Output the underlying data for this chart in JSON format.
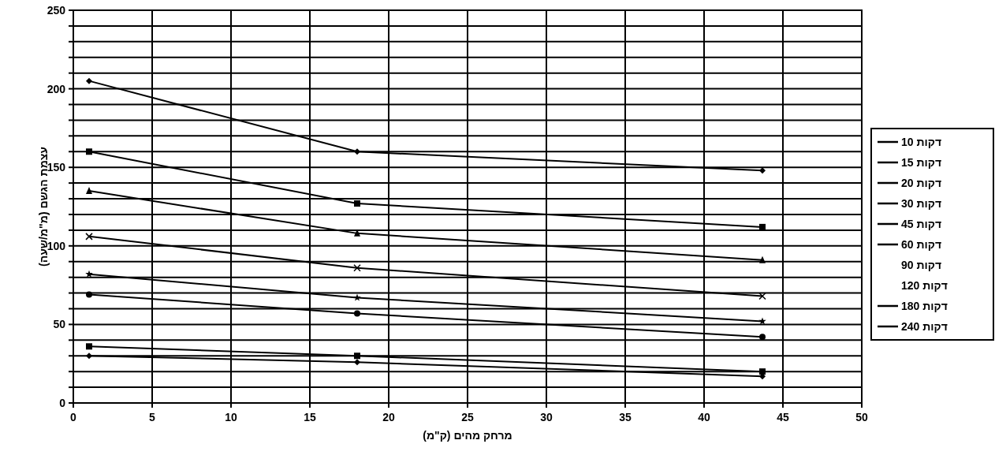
{
  "chart_data": {
    "type": "line",
    "xlabel": "מרחק מהים (ק\"מ)",
    "ylabel": "עצמת הגשם (מ\"מ/שעה)",
    "x": [
      1,
      18,
      43.7
    ],
    "series": [
      {
        "name": "10 דקות",
        "color": "#000000",
        "marker": "diamond",
        "values": [
          205,
          160,
          148
        ]
      },
      {
        "name": "15 דקות",
        "color": "#000000",
        "marker": "square",
        "values": [
          160,
          127,
          112
        ]
      },
      {
        "name": "20 דקות",
        "color": "#000000",
        "marker": "triangle",
        "values": [
          135,
          108,
          91
        ]
      },
      {
        "name": "30 דקות",
        "color": "#000000",
        "marker": "cross",
        "values": [
          106,
          86,
          68
        ]
      },
      {
        "name": "45 דקות",
        "color": "#000000",
        "marker": "star",
        "values": [
          82,
          67,
          52
        ]
      },
      {
        "name": "60 דקות",
        "color": "#000000",
        "marker": "circle",
        "values": [
          69,
          57,
          42
        ]
      },
      {
        "name": "90 דקות",
        "values": [
          null,
          null,
          null
        ]
      },
      {
        "name": "120 דקות",
        "values": [
          null,
          null,
          null
        ]
      },
      {
        "name": "180 דקות",
        "color": "#000000",
        "marker": "square",
        "values": [
          36,
          30,
          20
        ]
      },
      {
        "name": "240 דקות",
        "color": "#000000",
        "marker": "diamond",
        "values": [
          30,
          26,
          17
        ]
      }
    ],
    "xlim": [
      0,
      50
    ],
    "xticks": [
      0,
      5,
      10,
      15,
      20,
      25,
      30,
      35,
      40,
      45,
      50
    ],
    "ylim": [
      0,
      250
    ],
    "yticks": [
      0,
      {
        "value": 10,
        "label": null
      },
      {
        "value": 20,
        "label": null
      },
      {
        "value": 30,
        "label": null
      },
      {
        "value": 40,
        "label": null
      },
      50,
      {
        "value": 60,
        "label": null
      },
      {
        "value": 70,
        "label": null
      },
      {
        "value": 80,
        "label": null
      },
      {
        "value": 90,
        "label": null
      },
      100,
      {
        "value": 110,
        "label": null
      },
      {
        "value": 120,
        "label": null
      },
      {
        "value": 130,
        "label": null
      },
      {
        "value": 140,
        "label": null
      },
      150,
      {
        "value": 160,
        "label": null
      },
      {
        "value": 170,
        "label": null
      },
      {
        "value": 180,
        "label": null
      },
      {
        "value": 190,
        "label": null
      },
      200,
      {
        "value": 210,
        "label": null
      },
      {
        "value": 220,
        "label": null
      },
      {
        "value": 230,
        "label": null
      },
      {
        "value": 240,
        "label": null
      },
      250
    ],
    "grid": true,
    "legend": "right",
    "line_style": "solid"
  }
}
